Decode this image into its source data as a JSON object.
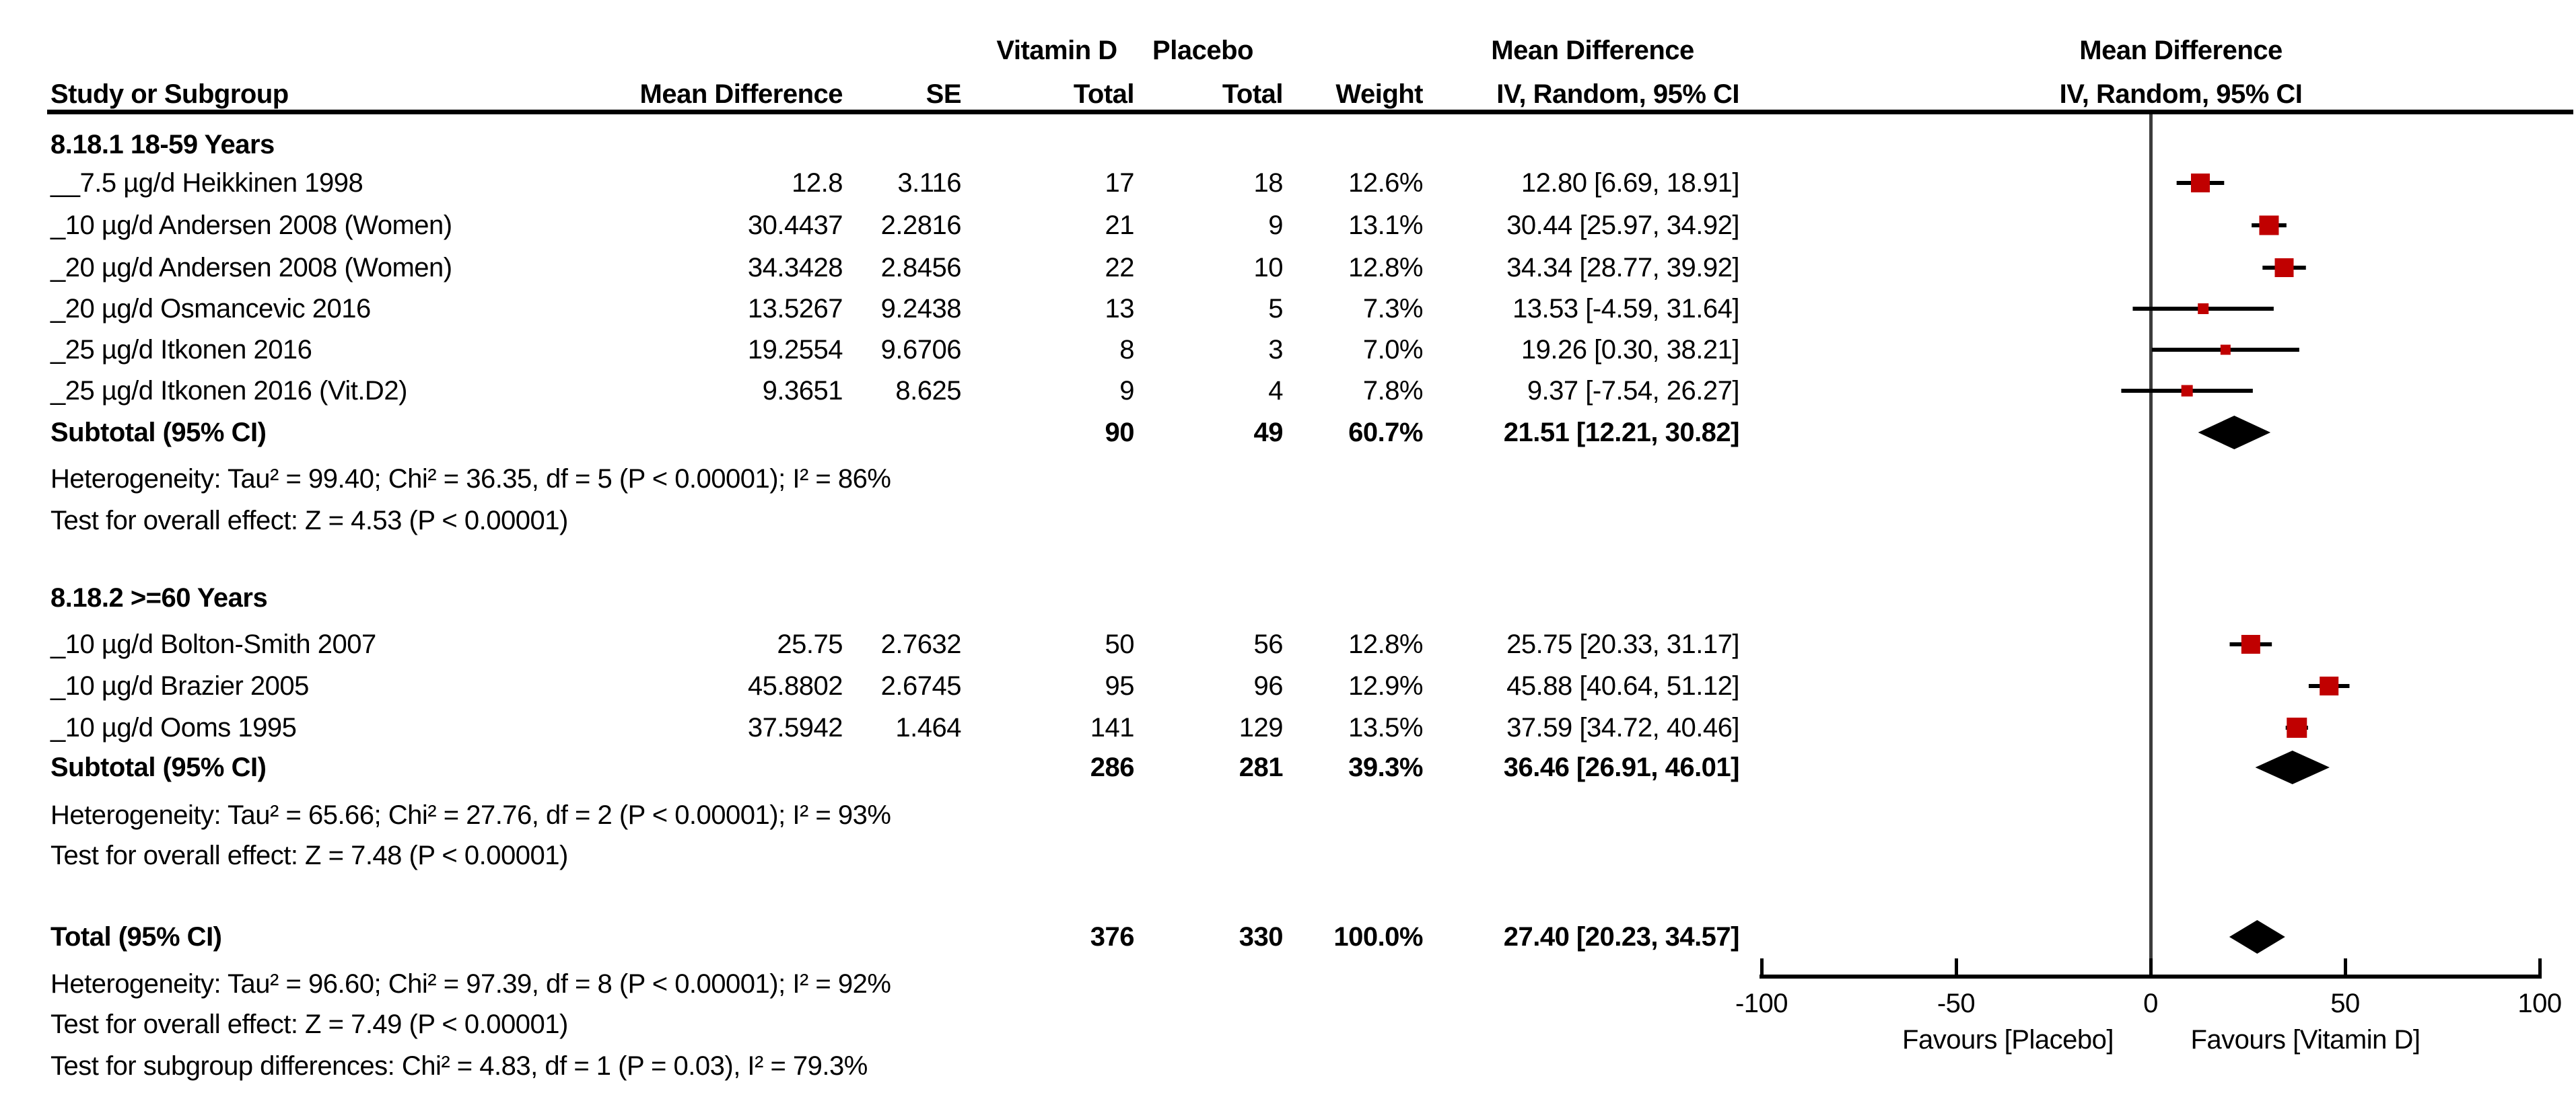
{
  "colors": {
    "marker_red": "#c00000",
    "diamond_black": "#000000",
    "line_black": "#000000",
    "zero_line_gray": "#3d3d3d",
    "text": "#000000",
    "background": "#ffffff"
  },
  "header": {
    "study": "Study or Subgroup",
    "md": "Mean Difference",
    "se": "SE",
    "vitamin_d_group": "Vitamin D",
    "placebo_group": "Placebo",
    "total_vd": "Total",
    "total_placebo": "Total",
    "weight": "Weight",
    "md_ci_table": "Mean Difference",
    "iv_random_table": "IV, Random, 95% CI",
    "md_ci_plot": "Mean Difference",
    "iv_random_plot": "IV, Random, 95% CI"
  },
  "axis": {
    "tick_labels": [
      "-100",
      "-50",
      "0",
      "50",
      "100"
    ],
    "tick_values": [
      -100,
      -50,
      0,
      50,
      100
    ],
    "xlim": [
      -100,
      100
    ],
    "favours_left": "Favours [Placebo]",
    "favours_right": "Favours [Vitamin D]"
  },
  "chart_data": {
    "type": "scatter",
    "subtype": "forest-plot",
    "effect_label": "Mean Difference, IV, Random, 95% CI",
    "comparison": {
      "experimental": "Vitamin D",
      "control": "Placebo"
    },
    "xlim": [
      -100,
      100
    ],
    "x_ticks": [
      -100,
      -50,
      0,
      50,
      100
    ],
    "groups": [
      {
        "heading": "8.18.1 18-59 Years",
        "studies": [
          {
            "label": "__7.5 µg/d Heikkinen 1998",
            "md_text": "12.8",
            "se_text": "3.116",
            "vd_total": "17",
            "placebo_total": "18",
            "weight_text": "12.6%",
            "ci_text": "12.80 [6.69, 18.91]",
            "est": 12.8,
            "lo": 6.69,
            "hi": 18.91,
            "weight_pct": 12.6
          },
          {
            "label": "_10 µg/d Andersen 2008 (Women)",
            "md_text": "30.4437",
            "se_text": "2.2816",
            "vd_total": "21",
            "placebo_total": "9",
            "weight_text": "13.1%",
            "ci_text": "30.44 [25.97, 34.92]",
            "est": 30.44,
            "lo": 25.97,
            "hi": 34.92,
            "weight_pct": 13.1
          },
          {
            "label": "_20 µg/d Andersen 2008 (Women)",
            "md_text": "34.3428",
            "se_text": "2.8456",
            "vd_total": "22",
            "placebo_total": "10",
            "weight_text": "12.8%",
            "ci_text": "34.34 [28.77, 39.92]",
            "est": 34.34,
            "lo": 28.77,
            "hi": 39.92,
            "weight_pct": 12.8
          },
          {
            "label": "_20 µg/d Osmancevic 2016",
            "md_text": "13.5267",
            "se_text": "9.2438",
            "vd_total": "13",
            "placebo_total": "5",
            "weight_text": "7.3%",
            "ci_text": "13.53 [-4.59, 31.64]",
            "est": 13.53,
            "lo": -4.59,
            "hi": 31.64,
            "weight_pct": 7.3
          },
          {
            "label": "_25 µg/d Itkonen 2016",
            "md_text": "19.2554",
            "se_text": "9.6706",
            "vd_total": "8",
            "placebo_total": "3",
            "weight_text": "7.0%",
            "ci_text": "19.26 [0.30, 38.21]",
            "est": 19.26,
            "lo": 0.3,
            "hi": 38.21,
            "weight_pct": 7.0
          },
          {
            "label": "_25 µg/d Itkonen 2016 (Vit.D2)",
            "md_text": "9.3651",
            "se_text": "8.625",
            "vd_total": "9",
            "placebo_total": "4",
            "weight_text": "7.8%",
            "ci_text": "9.37 [-7.54, 26.27]",
            "est": 9.37,
            "lo": -7.54,
            "hi": 26.27,
            "weight_pct": 7.8
          }
        ],
        "subtotal": {
          "label": "Subtotal (95% CI)",
          "vd_total": "90",
          "placebo_total": "49",
          "weight_text": "60.7%",
          "ci_text": "21.51 [12.21, 30.82]",
          "est": 21.51,
          "lo": 12.21,
          "hi": 30.82
        },
        "notes": [
          "Heterogeneity: Tau² = 99.40; Chi² = 36.35, df = 5 (P < 0.00001); I² = 86%",
          "Test for overall effect: Z = 4.53 (P < 0.00001)"
        ]
      },
      {
        "heading": "8.18.2 >=60 Years",
        "studies": [
          {
            "label": "_10 µg/d Bolton-Smith 2007",
            "md_text": "25.75",
            "se_text": "2.7632",
            "vd_total": "50",
            "placebo_total": "56",
            "weight_text": "12.8%",
            "ci_text": "25.75 [20.33, 31.17]",
            "est": 25.75,
            "lo": 20.33,
            "hi": 31.17,
            "weight_pct": 12.8
          },
          {
            "label": "_10 µg/d Brazier 2005",
            "md_text": "45.8802",
            "se_text": "2.6745",
            "vd_total": "95",
            "placebo_total": "96",
            "weight_text": "12.9%",
            "ci_text": "45.88 [40.64, 51.12]",
            "est": 45.88,
            "lo": 40.64,
            "hi": 51.12,
            "weight_pct": 12.9
          },
          {
            "label": "_10 µg/d Ooms 1995",
            "md_text": "37.5942",
            "se_text": "1.464",
            "vd_total": "141",
            "placebo_total": "129",
            "weight_text": "13.5%",
            "ci_text": "37.59 [34.72, 40.46]",
            "est": 37.59,
            "lo": 34.72,
            "hi": 40.46,
            "weight_pct": 13.5
          }
        ],
        "subtotal": {
          "label": "Subtotal (95% CI)",
          "vd_total": "286",
          "placebo_total": "281",
          "weight_text": "39.3%",
          "ci_text": "36.46 [26.91, 46.01]",
          "est": 36.46,
          "lo": 26.91,
          "hi": 46.01
        },
        "notes": [
          "Heterogeneity: Tau² = 65.66; Chi² = 27.76, df = 2 (P < 0.00001); I² = 93%",
          "Test for overall effect: Z = 7.48 (P < 0.00001)"
        ]
      }
    ],
    "total": {
      "label": "Total (95% CI)",
      "vd_total": "376",
      "placebo_total": "330",
      "weight_text": "100.0%",
      "ci_text": "27.40 [20.23, 34.57]",
      "est": 27.4,
      "lo": 20.23,
      "hi": 34.57,
      "notes": [
        "Heterogeneity: Tau² = 96.60; Chi² = 97.39, df = 8 (P < 0.00001); I² = 92%",
        "Test for overall effect: Z = 7.49 (P < 0.00001)",
        "Test for subgroup differences: Chi² = 4.83, df = 1 (P = 0.03), I² = 79.3%"
      ]
    }
  }
}
